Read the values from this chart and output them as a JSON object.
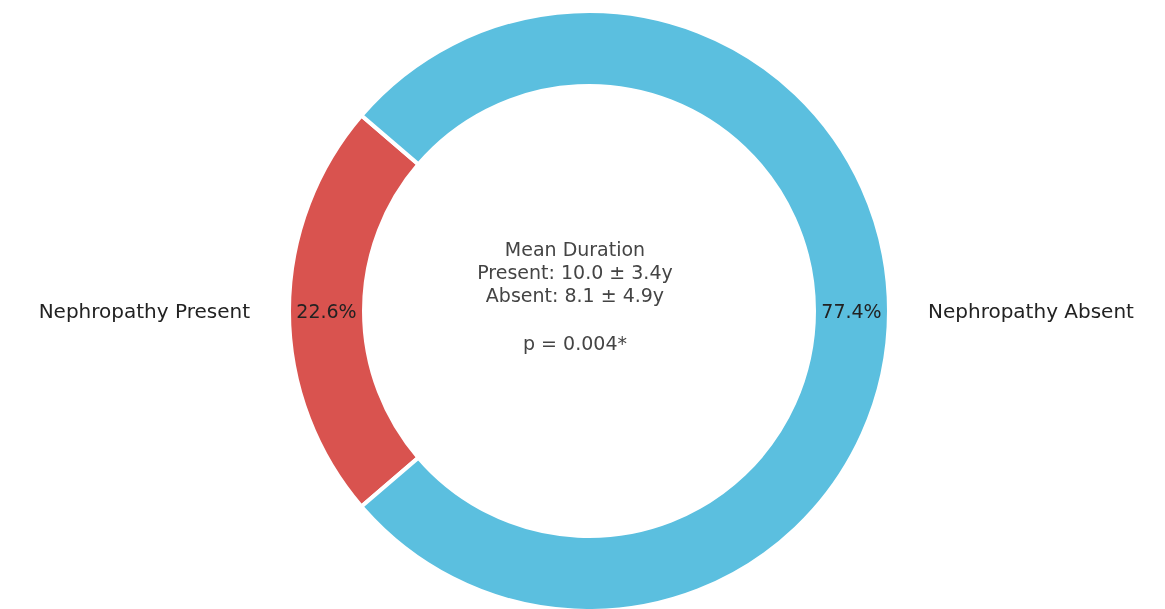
{
  "chart_data": {
    "type": "donut",
    "categories": [
      "Nephropathy Present",
      "Nephropathy Absent"
    ],
    "values": [
      22.6,
      77.4
    ],
    "colors": [
      "#d9534f",
      "#5bbfdf"
    ],
    "value_labels": [
      "22.6%",
      "77.4%"
    ],
    "annotations": [
      "Mean Duration",
      "Present: 10.0 ± 3.4y",
      "Absent: 8.1 ± 4.9y",
      "p = 0.004*"
    ]
  }
}
